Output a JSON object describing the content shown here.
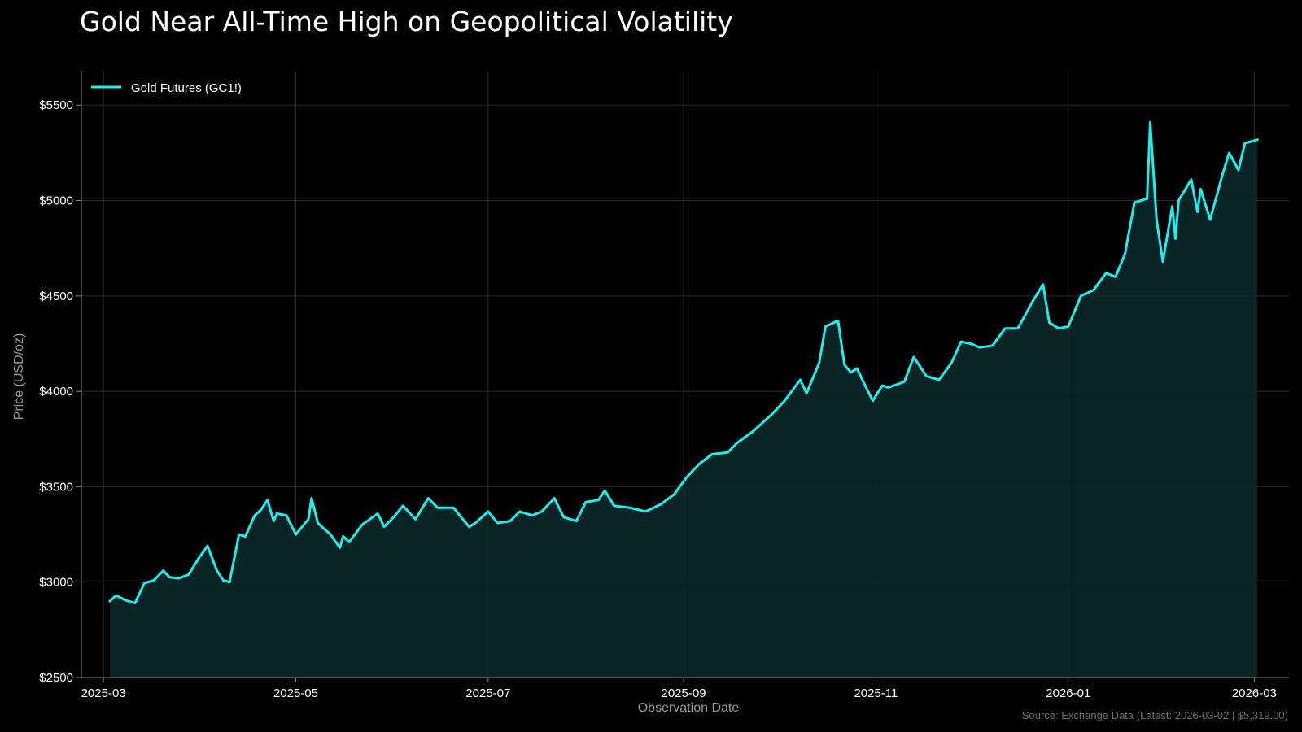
{
  "colors": {
    "background": "#000000",
    "line": "#19f0f0",
    "fill": "#0b2a2a",
    "grid": "#2a2a2a",
    "axis": "#8a8a8a",
    "text": "#ffffff",
    "muted_text": "#9a9a9a"
  },
  "chart_data": {
    "type": "area",
    "title": "Gold Near All-Time High on Geopolitical Volatility",
    "xlabel": "Observation Date",
    "ylabel": "Price (USD/oz)",
    "source_note": "Source: Exchange Data (Latest: 2026-03-02 | $5,319.00)",
    "grid": true,
    "legend_position": "top-left",
    "xlim": [
      "2025-02-22",
      "2026-03-12"
    ],
    "ylim": [
      2500,
      5680
    ],
    "x_ticks": [
      "2025-03-01",
      "2025-05-01",
      "2025-07-01",
      "2025-09-01",
      "2025-11-01",
      "2026-01-01",
      "2026-03-01"
    ],
    "x_tick_labels": [
      "2025-03",
      "2025-05",
      "2025-07",
      "2025-09",
      "2025-11",
      "2026-01",
      "2026-03"
    ],
    "y_ticks": [
      2500,
      3000,
      3500,
      4000,
      4500,
      5000,
      5500
    ],
    "y_tick_labels": [
      "$2500",
      "$3000",
      "$3500",
      "$4000",
      "$4500",
      "$5000",
      "$5500"
    ],
    "series": [
      {
        "name": "Gold Futures (GC1!)",
        "x": [
          "2025-03-03",
          "2025-03-05",
          "2025-03-08",
          "2025-03-11",
          "2025-03-14",
          "2025-03-17",
          "2025-03-20",
          "2025-03-22",
          "2025-03-25",
          "2025-03-28",
          "2025-03-31",
          "2025-04-03",
          "2025-04-06",
          "2025-04-08",
          "2025-04-10",
          "2025-04-13",
          "2025-04-15",
          "2025-04-18",
          "2025-04-20",
          "2025-04-22",
          "2025-04-24",
          "2025-04-25",
          "2025-04-28",
          "2025-05-01",
          "2025-05-05",
          "2025-05-06",
          "2025-05-08",
          "2025-05-12",
          "2025-05-15",
          "2025-05-16",
          "2025-05-18",
          "2025-05-22",
          "2025-05-27",
          "2025-05-29",
          "2025-06-01",
          "2025-06-04",
          "2025-06-08",
          "2025-06-12",
          "2025-06-15",
          "2025-06-17",
          "2025-06-20",
          "2025-06-25",
          "2025-06-27",
          "2025-07-01",
          "2025-07-04",
          "2025-07-08",
          "2025-07-11",
          "2025-07-15",
          "2025-07-18",
          "2025-07-22",
          "2025-07-25",
          "2025-07-29",
          "2025-08-01",
          "2025-08-05",
          "2025-08-07",
          "2025-08-10",
          "2025-08-15",
          "2025-08-20",
          "2025-08-25",
          "2025-08-29",
          "2025-09-02",
          "2025-09-06",
          "2025-09-10",
          "2025-09-15",
          "2025-09-18",
          "2025-09-23",
          "2025-09-29",
          "2025-10-03",
          "2025-10-08",
          "2025-10-10",
          "2025-10-14",
          "2025-10-16",
          "2025-10-20",
          "2025-10-22",
          "2025-10-24",
          "2025-10-26",
          "2025-10-28",
          "2025-10-31",
          "2025-11-03",
          "2025-11-05",
          "2025-11-10",
          "2025-11-13",
          "2025-11-17",
          "2025-11-21",
          "2025-11-25",
          "2025-11-28",
          "2025-12-01",
          "2025-12-04",
          "2025-12-08",
          "2025-12-12",
          "2025-12-16",
          "2025-12-21",
          "2025-12-24",
          "2025-12-26",
          "2025-12-29",
          "2026-01-01",
          "2026-01-05",
          "2026-01-09",
          "2026-01-13",
          "2026-01-16",
          "2026-01-19",
          "2026-01-22",
          "2026-01-26",
          "2026-01-27",
          "2026-01-29",
          "2026-01-31",
          "2026-02-03",
          "2026-02-04",
          "2026-02-05",
          "2026-02-09",
          "2026-02-11",
          "2026-02-12",
          "2026-02-15",
          "2026-02-19",
          "2026-02-21",
          "2026-02-24",
          "2026-02-26",
          "2026-03-02"
        ],
        "values": [
          2900,
          2930,
          2905,
          2890,
          2995,
          3010,
          3060,
          3025,
          3020,
          3040,
          3120,
          3190,
          3060,
          3010,
          3000,
          3250,
          3240,
          3350,
          3380,
          3430,
          3320,
          3360,
          3350,
          3250,
          3330,
          3440,
          3310,
          3250,
          3180,
          3240,
          3210,
          3300,
          3360,
          3290,
          3340,
          3400,
          3330,
          3440,
          3390,
          3390,
          3390,
          3290,
          3310,
          3370,
          3310,
          3320,
          3370,
          3350,
          3370,
          3440,
          3340,
          3320,
          3420,
          3430,
          3480,
          3400,
          3390,
          3370,
          3410,
          3460,
          3550,
          3620,
          3670,
          3680,
          3730,
          3790,
          3880,
          3950,
          4060,
          3990,
          4150,
          4340,
          4370,
          4140,
          4100,
          4120,
          4050,
          3950,
          4030,
          4020,
          4050,
          4180,
          4080,
          4060,
          4150,
          4260,
          4250,
          4230,
          4240,
          4330,
          4330,
          4480,
          4560,
          4360,
          4330,
          4340,
          4500,
          4530,
          4620,
          4600,
          4720,
          4990,
          5010,
          5410,
          4900,
          4680,
          4970,
          4800,
          5000,
          5110,
          4940,
          5060,
          4900,
          5140,
          5250,
          5160,
          5300,
          5319
        ]
      }
    ]
  }
}
